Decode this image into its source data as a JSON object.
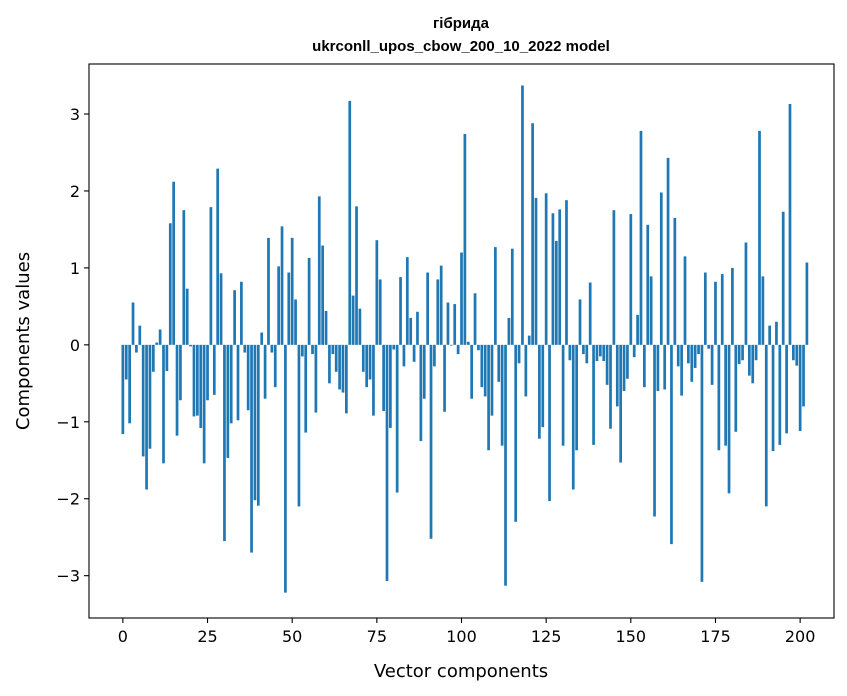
{
  "chart_data": {
    "type": "bar",
    "title": "гібрида",
    "subtitle": "ukrconll_upos_cbow_200_10_2022 model",
    "xlabel": "Vector components",
    "ylabel": "Components values",
    "xlim": [
      -10,
      210
    ],
    "ylim": [
      -3.55,
      3.65
    ],
    "xticks": [
      0,
      25,
      50,
      75,
      100,
      125,
      150,
      175,
      200
    ],
    "yticks": [
      -3,
      -2,
      -1,
      0,
      1,
      2,
      3
    ],
    "xtick_labels": [
      "0",
      "25",
      "50",
      "75",
      "100",
      "125",
      "150",
      "175",
      "200"
    ],
    "ytick_labels": [
      "−3",
      "−2",
      "−1",
      "0",
      "1",
      "2",
      "3"
    ],
    "bar_color": "#1f77b4",
    "values": [
      -1.16,
      -0.45,
      -1.02,
      0.55,
      -0.1,
      0.25,
      -1.45,
      -1.88,
      -1.35,
      -0.35,
      0.03,
      0.2,
      -1.54,
      -0.34,
      1.58,
      2.12,
      -1.18,
      -0.72,
      1.75,
      0.73,
      -0.02,
      -0.93,
      -0.92,
      -1.08,
      -1.54,
      -0.72,
      1.79,
      -0.65,
      2.29,
      0.93,
      -2.55,
      -1.47,
      -1.02,
      0.71,
      -0.98,
      0.82,
      -0.1,
      -0.85,
      -2.7,
      -2.02,
      -2.09,
      0.16,
      -0.7,
      1.39,
      -0.1,
      -0.55,
      1.02,
      1.54,
      -3.22,
      0.94,
      1.39,
      0.59,
      -2.1,
      -0.15,
      -1.14,
      1.13,
      -0.12,
      -0.88,
      1.93,
      1.29,
      0.44,
      -0.5,
      -0.12,
      -0.35,
      -0.58,
      -0.62,
      -0.89,
      3.17,
      0.64,
      1.8,
      0.47,
      -0.35,
      -0.55,
      -0.45,
      -0.92,
      1.36,
      0.85,
      -0.86,
      -3.07,
      -1.08,
      -0.06,
      -1.92,
      0.88,
      -0.28,
      1.14,
      0.35,
      -0.22,
      0.43,
      -1.25,
      -0.7,
      0.94,
      -2.52,
      -0.28,
      0.85,
      1.03,
      -0.87,
      0.55,
      -0.01,
      0.53,
      -0.12,
      1.2,
      2.74,
      0.04,
      -0.7,
      0.67,
      -0.07,
      -0.55,
      -0.67,
      -1.37,
      -0.92,
      1.27,
      -0.48,
      -1.31,
      -3.13,
      0.35,
      1.25,
      -2.3,
      -0.24,
      3.37,
      -0.67,
      0.12,
      2.88,
      1.91,
      -1.22,
      -1.07,
      1.97,
      -2.03,
      1.71,
      1.35,
      1.76,
      -1.31,
      1.88,
      -0.2,
      -1.88,
      -1.37,
      0.59,
      -0.12,
      -0.24,
      0.81,
      -1.3,
      -0.21,
      -0.15,
      -0.21,
      -0.52,
      -1.09,
      1.75,
      -0.8,
      -1.53,
      -0.6,
      -0.44,
      1.7,
      -0.16,
      0.39,
      2.78,
      -0.55,
      1.56,
      0.89,
      -2.23,
      -0.6,
      1.98,
      -0.58,
      2.43,
      -2.59,
      1.65,
      -0.28,
      -0.66,
      1.15,
      -0.24,
      -0.48,
      -0.3,
      -0.12,
      -3.08,
      0.94,
      -0.05,
      -0.52,
      0.82,
      -1.37,
      0.92,
      -1.31,
      -1.93,
      1.0,
      -1.13,
      -0.25,
      -0.2,
      1.33,
      -0.4,
      -0.5,
      -0.2,
      2.78,
      0.89,
      -2.1,
      0.25,
      -1.38,
      0.3,
      -1.3,
      1.73,
      -1.15,
      3.13,
      -0.2,
      -0.27,
      -1.12,
      -0.8,
      1.07
    ]
  }
}
